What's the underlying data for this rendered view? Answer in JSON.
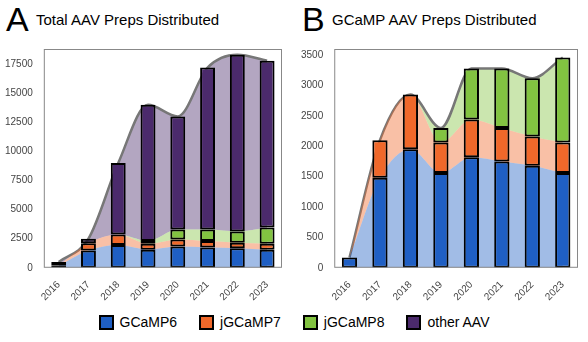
{
  "chart_data": [
    {
      "type": "bar",
      "panel": "A",
      "title": "Total AAV Preps Distributed",
      "categories": [
        "2016",
        "2017",
        "2018",
        "2019",
        "2020",
        "2021",
        "2022",
        "2023"
      ],
      "series": [
        {
          "name": "GCaMP6",
          "color": "#1f5fc4",
          "values": [
            170,
            1480,
            1950,
            1560,
            1820,
            1750,
            1680,
            1560
          ]
        },
        {
          "name": "jGCaMP7",
          "color": "#f0682a",
          "values": [
            0,
            620,
            900,
            500,
            620,
            550,
            480,
            500
          ]
        },
        {
          "name": "jGCaMP8",
          "color": "#82c341",
          "values": [
            0,
            0,
            0,
            240,
            840,
            980,
            960,
            1400
          ]
        },
        {
          "name": "other AAV",
          "color": "#4b2a6c",
          "values": [
            330,
            400,
            6150,
            11700,
            9720,
            13920,
            15180,
            14340
          ]
        }
      ],
      "stacked": true,
      "grid": false,
      "legend": "bottom",
      "ylim": [
        0,
        18800
      ],
      "yticks": [
        0,
        2500,
        5000,
        7500,
        10000,
        12500,
        15000,
        17500
      ]
    },
    {
      "type": "bar",
      "panel": "B",
      "title": "GCaMP AAV Preps Distributed",
      "categories": [
        "2016",
        "2017",
        "2018",
        "2019",
        "2020",
        "2021",
        "2022",
        "2023"
      ],
      "series": [
        {
          "name": "GCaMP6",
          "color": "#1f5fc4",
          "values": [
            170,
            1480,
            1950,
            1560,
            1820,
            1750,
            1680,
            1560
          ]
        },
        {
          "name": "jGCaMP7",
          "color": "#f0682a",
          "values": [
            0,
            620,
            900,
            500,
            620,
            550,
            480,
            500
          ]
        },
        {
          "name": "jGCaMP8",
          "color": "#82c341",
          "values": [
            0,
            0,
            0,
            240,
            840,
            980,
            960,
            1400
          ]
        }
      ],
      "stacked": true,
      "grid": false,
      "ylim": [
        0,
        3600
      ],
      "yticks": [
        0,
        500,
        1000,
        1500,
        2000,
        2500,
        3000,
        3500
      ]
    }
  ]
}
